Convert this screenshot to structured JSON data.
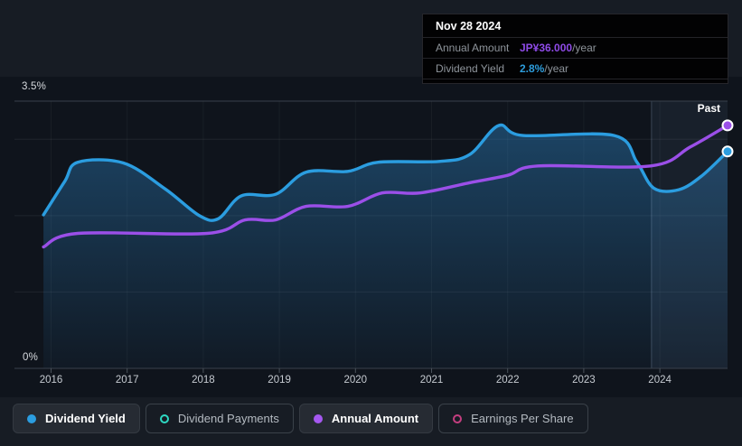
{
  "tooltip": {
    "date": "Nov 28 2024",
    "rows": [
      {
        "label": "Annual Amount",
        "value": "JP¥36.000",
        "suffix": "/year",
        "color": "#8f4be8"
      },
      {
        "label": "Dividend Yield",
        "value": "2.8%",
        "suffix": "/year",
        "color": "#2d9cdb"
      }
    ]
  },
  "legend": [
    {
      "label": "Dividend Yield",
      "color": "#2b9de0",
      "shape": "dot",
      "active": true
    },
    {
      "label": "Dividend Payments",
      "color": "#2ed9c3",
      "shape": "ring",
      "active": false
    },
    {
      "label": "Annual Amount",
      "color": "#a558f0",
      "shape": "dot",
      "active": true
    },
    {
      "label": "Earnings Per Share",
      "color": "#c43e7f",
      "shape": "ring",
      "active": false
    }
  ],
  "chart_data": {
    "type": "area",
    "title": "Dividend history (yield and annual amount over time)",
    "x_ticks": [
      2016,
      2017,
      2018,
      2019,
      2020,
      2021,
      2022,
      2023,
      2024
    ],
    "x_range": [
      2015.52,
      2024.95
    ],
    "past_label": "Past",
    "highlight_start_year": 2023.89,
    "grid": true,
    "legend_position": "bottom",
    "y_left": {
      "unit": "%",
      "min": 0,
      "max": 3.5,
      "label_top": "3.5%",
      "label_bottom": "0%",
      "gridlines": [
        1,
        2,
        3
      ]
    },
    "y_right": {
      "unit": "JP¥/year",
      "min": 0,
      "max": 39.6
    },
    "series": [
      {
        "name": "Dividend Yield",
        "axis": "left",
        "unit": "%",
        "color": "#2b9de0",
        "area_fill": true,
        "end_marker": true,
        "end_value": 2.8,
        "points": [
          [
            2015.9,
            2.01
          ],
          [
            2016.18,
            2.45
          ],
          [
            2016.35,
            2.7
          ],
          [
            2016.95,
            2.69
          ],
          [
            2017.5,
            2.35
          ],
          [
            2017.95,
            2.0
          ],
          [
            2018.2,
            1.96
          ],
          [
            2018.5,
            2.26
          ],
          [
            2018.95,
            2.28
          ],
          [
            2019.35,
            2.57
          ],
          [
            2019.9,
            2.58
          ],
          [
            2020.3,
            2.7
          ],
          [
            2021.1,
            2.71
          ],
          [
            2021.5,
            2.8
          ],
          [
            2021.88,
            3.18
          ],
          [
            2022.2,
            3.05
          ],
          [
            2023.4,
            3.05
          ],
          [
            2023.7,
            2.7
          ],
          [
            2023.92,
            2.36
          ],
          [
            2024.25,
            2.34
          ],
          [
            2024.55,
            2.52
          ],
          [
            2024.89,
            2.84
          ]
        ]
      },
      {
        "name": "Annual Amount",
        "axis": "right",
        "unit": "JP¥",
        "color": "#9b4fe8",
        "area_fill": false,
        "end_marker": true,
        "end_value": 36.0,
        "points": [
          [
            2015.9,
            18.0
          ],
          [
            2016.35,
            20.0
          ],
          [
            2018.05,
            20.0
          ],
          [
            2018.55,
            22.0
          ],
          [
            2018.95,
            22.0
          ],
          [
            2019.35,
            24.0
          ],
          [
            2019.9,
            24.0
          ],
          [
            2020.35,
            26.0
          ],
          [
            2020.85,
            26.0
          ],
          [
            2021.5,
            27.5
          ],
          [
            2022.0,
            28.6
          ],
          [
            2022.4,
            30.0
          ],
          [
            2023.88,
            30.0
          ],
          [
            2024.4,
            32.8
          ],
          [
            2024.89,
            36.0
          ]
        ]
      }
    ]
  },
  "colors": {
    "background": "#171c24",
    "plot_background": "#0f141c",
    "axis_line": "#39414b",
    "grid_faint": "rgba(255,255,255,0.07)",
    "past_highlight": "rgba(120,158,196,0.09)"
  }
}
